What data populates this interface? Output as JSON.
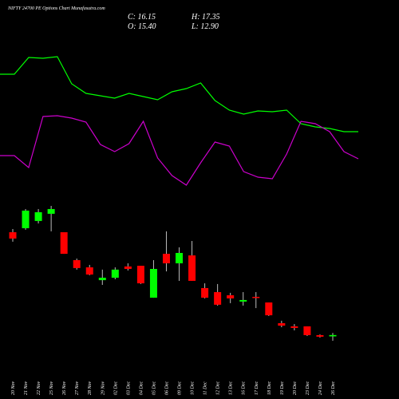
{
  "chart_data": {
    "type": "candlestick",
    "title": "NIFTY 24700  PE Options  Chart Munafasutra.com",
    "header": [
      "C: 16.15",
      "H: 17.35",
      "O: 15.40",
      "L: 12.90"
    ],
    "categories": [
      "20 Nov",
      "21 Nov",
      "22 Nov",
      "25 Nov",
      "26 Nov",
      "27 Nov",
      "28 Nov",
      "29 Nov",
      "02 Dec",
      "03 Dec",
      "04 Dec",
      "05 Dec",
      "06 Dec",
      "09 Dec",
      "10 Dec",
      "11 Dec",
      "12 Dec",
      "13 Dec",
      "16 Dec",
      "17 Dec",
      "18 Dec",
      "19 Dec",
      "20 Dec",
      "23 Dec",
      "24 Dec",
      "26 Dec"
    ],
    "open": [
      74.7,
      77.0,
      81.1,
      85.2,
      74.7,
      58.8,
      54.7,
      47.4,
      48.8,
      55.2,
      55.6,
      37.4,
      62.4,
      57.0,
      61.5,
      42.9,
      40.6,
      38.8,
      35.2,
      37.9,
      34.7,
      22.9,
      21.1,
      21.1,
      16.1,
      15.4
    ],
    "high": [
      76.5,
      87.9,
      87.9,
      89.7,
      74.7,
      59.7,
      56.1,
      53.4,
      54.7,
      57.0,
      55.6,
      58.8,
      75.2,
      66.1,
      69.7,
      45.6,
      45.2,
      40.2,
      40.6,
      40.6,
      34.7,
      24.3,
      22.4,
      21.1,
      16.5,
      17.35
    ],
    "low": [
      69.3,
      76.1,
      79.7,
      75.2,
      62.4,
      53.4,
      50.2,
      44.7,
      47.9,
      52.9,
      45.2,
      37.4,
      52.4,
      47.0,
      47.0,
      37.0,
      32.9,
      34.3,
      32.9,
      31.5,
      27.0,
      20.6,
      18.8,
      15.6,
      14.7,
      12.9
    ],
    "close": [
      71.1,
      87.0,
      86.1,
      87.9,
      62.4,
      54.3,
      50.6,
      48.8,
      53.4,
      53.8,
      45.6,
      53.8,
      57.0,
      62.9,
      47.0,
      37.4,
      33.4,
      37.0,
      36.1,
      37.4,
      27.4,
      21.5,
      20.2,
      16.1,
      15.2,
      16.15
    ],
    "up_color": "#00ff00",
    "down_color": "#ff0000",
    "lines": [
      {
        "color": "#00ff00",
        "values": [
          157,
          157,
          178,
          177,
          179,
          145,
          133,
          130,
          127,
          133,
          129,
          125,
          135,
          139,
          146,
          124,
          112,
          107,
          111,
          110,
          112,
          95,
          91,
          89,
          85,
          85
        ]
      },
      {
        "color": "#cc00cc",
        "values": [
          55,
          55,
          40,
          104,
          105,
          102,
          97,
          69,
          60,
          70,
          98,
          52,
          30,
          18,
          46,
          72,
          67,
          35,
          28,
          26,
          57,
          98,
          95,
          85,
          60,
          51
        ]
      }
    ]
  }
}
